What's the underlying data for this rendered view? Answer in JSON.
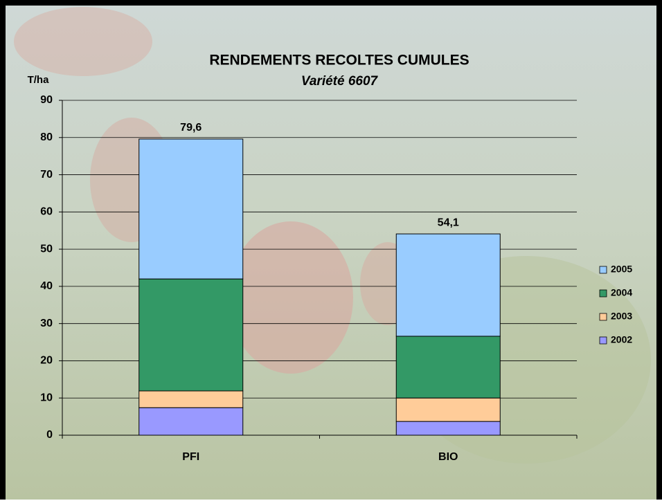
{
  "chart_data": {
    "type": "stacked_bar",
    "title": "RENDEMENTS RECOLTES CUMULES",
    "subtitle": "Variété 6607",
    "y_label": "T/ha",
    "categories": [
      "PFI",
      "BIO"
    ],
    "series": [
      {
        "name": "2002",
        "color": "#9999ff",
        "values": [
          7.4,
          3.7
        ]
      },
      {
        "name": "2003",
        "color": "#ffcc99",
        "values": [
          4.5,
          6.3
        ]
      },
      {
        "name": "2004",
        "color": "#339966",
        "values": [
          30.1,
          16.6
        ]
      },
      {
        "name": "2005",
        "color": "#99ccff",
        "values": [
          37.6,
          27.5
        ]
      }
    ],
    "totals": [
      79.6,
      54.1
    ],
    "total_labels": [
      "79,6",
      "54,1"
    ],
    "ylim": [
      0,
      90
    ],
    "yticks": [
      0,
      10,
      20,
      30,
      40,
      50,
      60,
      70,
      80,
      90
    ],
    "grid": true,
    "legend": "right"
  }
}
